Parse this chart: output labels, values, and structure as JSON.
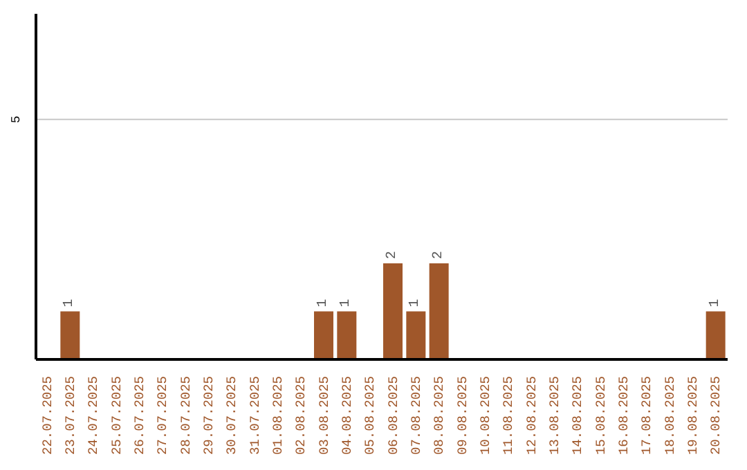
{
  "chart_data": {
    "type": "bar",
    "categories": [
      "22.07.2025",
      "23.07.2025",
      "24.07.2025",
      "25.07.2025",
      "26.07.2025",
      "27.07.2025",
      "28.07.2025",
      "29.07.2025",
      "30.07.2025",
      "31.07.2025",
      "01.08.2025",
      "02.08.2025",
      "03.08.2025",
      "04.08.2025",
      "05.08.2025",
      "06.08.2025",
      "07.08.2025",
      "08.08.2025",
      "09.08.2025",
      "10.08.2025",
      "11.08.2025",
      "12.08.2025",
      "13.08.2025",
      "14.08.2025",
      "15.08.2025",
      "16.08.2025",
      "17.08.2025",
      "18.08.2025",
      "19.08.2025",
      "20.08.2025"
    ],
    "values": [
      null,
      1,
      null,
      null,
      null,
      null,
      null,
      null,
      null,
      null,
      null,
      null,
      1,
      1,
      null,
      2,
      1,
      2,
      null,
      null,
      null,
      null,
      null,
      null,
      null,
      null,
      null,
      null,
      null,
      1
    ],
    "color": "#a0572a",
    "ylim": [
      0,
      7.2
    ],
    "yticks": [
      5
    ],
    "grid": "y",
    "data_labels": true
  }
}
